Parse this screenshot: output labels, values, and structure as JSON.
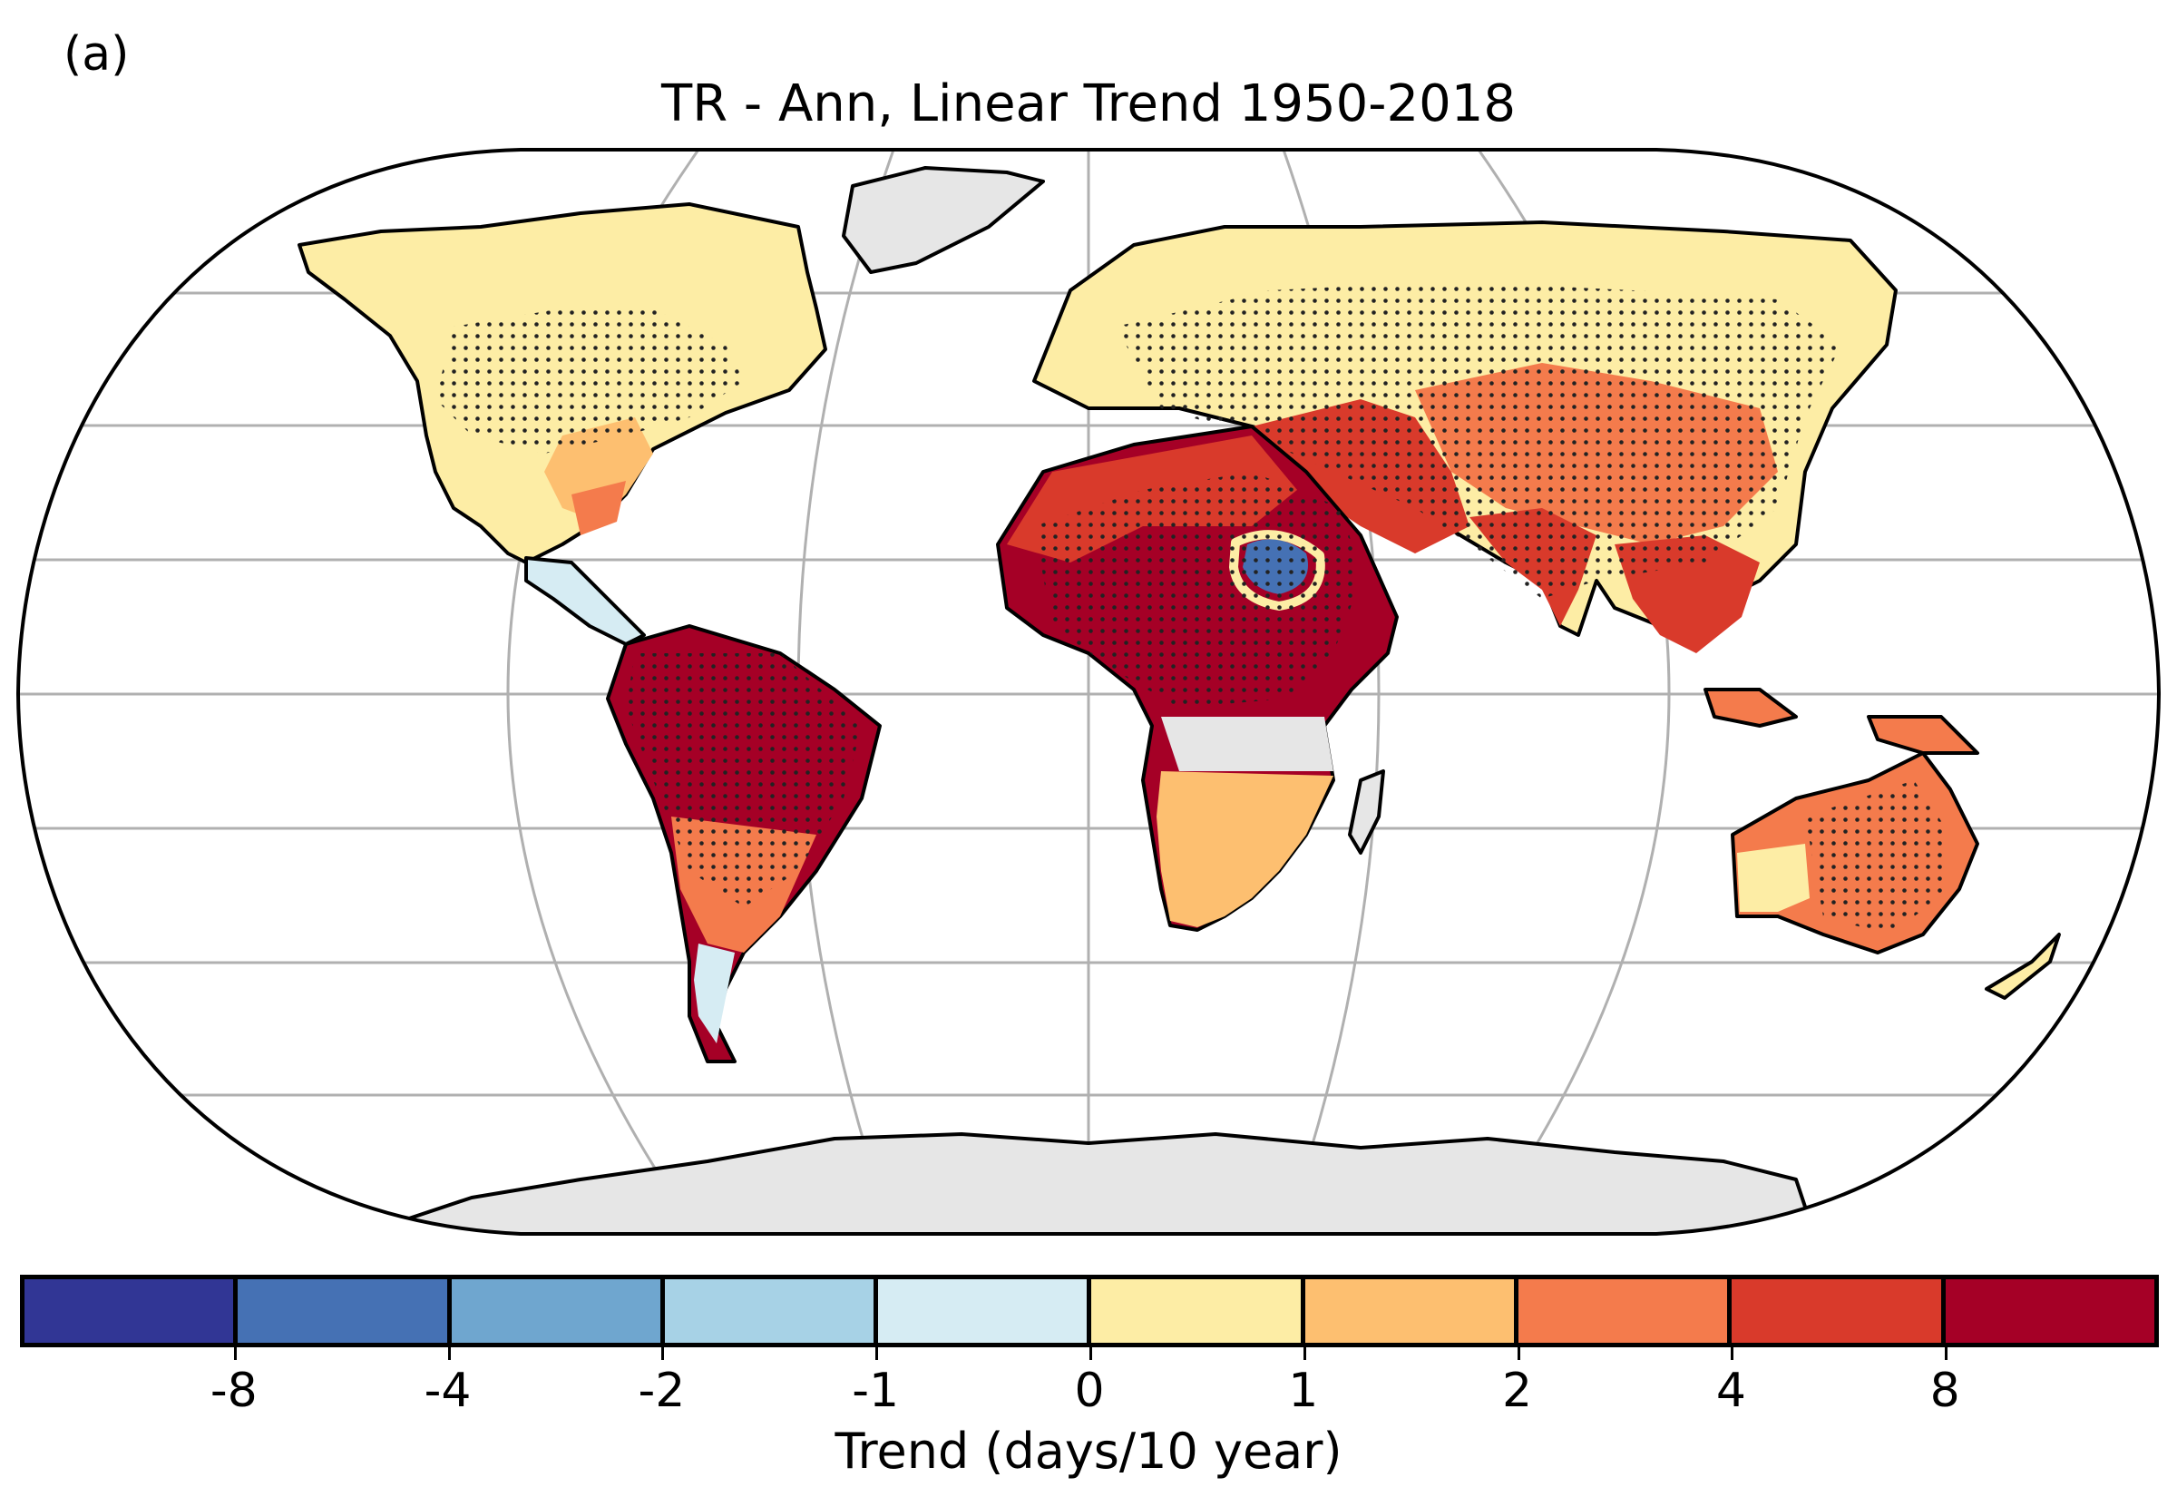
{
  "panel_label": "(a)",
  "title": "TR - Ann, Linear Trend 1950-2018",
  "colorbar": {
    "label": "Trend (days/10 year)",
    "tick_labels": [
      "-8",
      "-4",
      "-2",
      "-1",
      "0",
      "1",
      "2",
      "4",
      "8"
    ],
    "bins": [
      {
        "range": "< -8",
        "color": "#313695"
      },
      {
        "range": "-8 to -4",
        "color": "#4571b4"
      },
      {
        "range": "-4 to -2",
        "color": "#6fa6cf"
      },
      {
        "range": "-2 to -1",
        "color": "#a7d2e6"
      },
      {
        "range": "-1 to 0",
        "color": "#d6ecf3"
      },
      {
        "range": "0 to 1",
        "color": "#fdeda5"
      },
      {
        "range": "1 to 2",
        "color": "#fdbf70"
      },
      {
        "range": "2 to 4",
        "color": "#f47b4c"
      },
      {
        "range": "4 to 8",
        "color": "#d93a2b"
      },
      {
        "range": "> 8",
        "color": "#a50026"
      }
    ]
  },
  "colors": {
    "ocean": "#ffffff",
    "no_data": "#e6e6e6",
    "gridline": "#b0b0b0",
    "coastline": "#000000",
    "stipple": "#222222"
  },
  "map": {
    "projection": "Robinson",
    "stippling": "dots mark statistically significant trends",
    "regions": [
      {
        "name": "North America",
        "trend_bin": "0 to 1"
      },
      {
        "name": "Eastern United States",
        "trend_bin": "1 to 2"
      },
      {
        "name": "Gulf Coast",
        "trend_bin": "2 to 4"
      },
      {
        "name": "Central America",
        "trend_bin": "-1 to 0"
      },
      {
        "name": "Greenland",
        "trend_bin": "no data"
      },
      {
        "name": "Amazon Basin",
        "trend_bin": "> 8"
      },
      {
        "name": "Southern South America",
        "trend_bin": "2 to 4"
      },
      {
        "name": "Patagonia",
        "trend_bin": "-1 to 0"
      },
      {
        "name": "Europe",
        "trend_bin": "0 to 1"
      },
      {
        "name": "Northern Asia",
        "trend_bin": "0 to 1"
      },
      {
        "name": "Middle East",
        "trend_bin": "4 to 8"
      },
      {
        "name": "Sahel and Central Africa",
        "trend_bin": "> 8"
      },
      {
        "name": "Ethiopian Highlands",
        "trend_bin": "-8 to -4"
      },
      {
        "name": "Central Africa band",
        "trend_bin": "no data"
      },
      {
        "name": "Southern Africa",
        "trend_bin": "1 to 2"
      },
      {
        "name": "India",
        "trend_bin": "4 to 8"
      },
      {
        "name": "China",
        "trend_bin": "2 to 4"
      },
      {
        "name": "Southeast Asia",
        "trend_bin": "4 to 8"
      },
      {
        "name": "Northern Australia",
        "trend_bin": "2 to 4"
      },
      {
        "name": "Southern Australia",
        "trend_bin": "0 to 1"
      },
      {
        "name": "Antarctica",
        "trend_bin": "no data"
      }
    ]
  }
}
